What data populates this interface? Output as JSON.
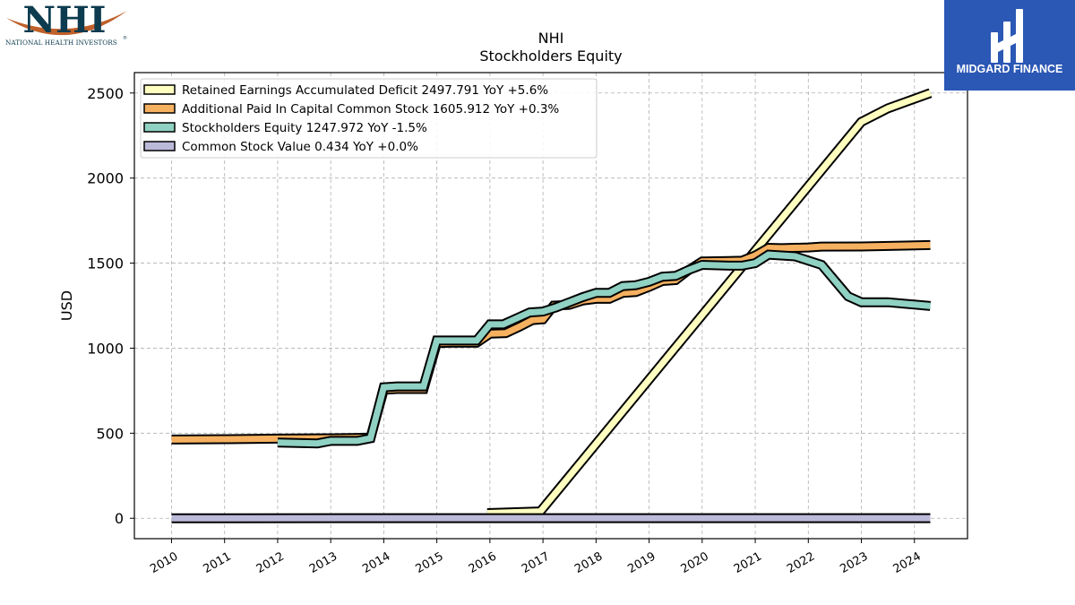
{
  "logo_left": {
    "text": "NHI",
    "subtext": "NATIONAL HEALTH INVESTORS",
    "mark": "®"
  },
  "logo_right": {
    "text": "MIDGARD FINANCE",
    "bg_color": "#2b57b5"
  },
  "chart_data": {
    "type": "line",
    "title": "NHI",
    "subtitle": "Stockholders  Equity",
    "ylabel": "USD",
    "xlabel": "",
    "xlim": [
      2009.3,
      2025.0
    ],
    "ylim": [
      -120,
      2620
    ],
    "x_ticks": [
      2010,
      2011,
      2012,
      2013,
      2014,
      2015,
      2016,
      2017,
      2018,
      2019,
      2020,
      2021,
      2022,
      2023,
      2024
    ],
    "y_ticks": [
      0,
      500,
      1000,
      1500,
      2000,
      2500
    ],
    "grid": true,
    "legend_position": "top-left",
    "series": [
      {
        "name": "Retained Earnings Accumulated Deficit",
        "legend": "Retained Earnings Accumulated Deficit  2497.791 YoY +5.6%",
        "color": "#ffffc0",
        "points": [
          [
            2015.95,
            30
          ],
          [
            2016.95,
            40
          ],
          [
            2023.0,
            2330
          ],
          [
            2023.5,
            2410
          ],
          [
            2024.3,
            2500
          ]
        ]
      },
      {
        "name": "Additional Paid In Capital Common Stock",
        "legend": "Additional Paid In Capital Common Stock  1605.912 YoY +0.3%",
        "color": "#f5b060",
        "points": [
          [
            2010.0,
            463
          ],
          [
            2011.0,
            465
          ],
          [
            2012.0,
            468
          ],
          [
            2013.0,
            470
          ],
          [
            2013.5,
            472
          ],
          [
            2013.75,
            475
          ],
          [
            2014.0,
            755
          ],
          [
            2014.25,
            760
          ],
          [
            2014.75,
            760
          ],
          [
            2015.0,
            1030
          ],
          [
            2015.25,
            1032
          ],
          [
            2015.75,
            1032
          ],
          [
            2016.0,
            1085
          ],
          [
            2016.3,
            1088
          ],
          [
            2016.55,
            1125
          ],
          [
            2016.8,
            1165
          ],
          [
            2017.0,
            1170
          ],
          [
            2017.2,
            1250
          ],
          [
            2017.5,
            1255
          ],
          [
            2017.75,
            1280
          ],
          [
            2018.0,
            1290
          ],
          [
            2018.25,
            1290
          ],
          [
            2018.5,
            1325
          ],
          [
            2018.75,
            1330
          ],
          [
            2019.0,
            1360
          ],
          [
            2019.25,
            1395
          ],
          [
            2019.5,
            1400
          ],
          [
            2019.75,
            1460
          ],
          [
            2020.0,
            1510
          ],
          [
            2020.5,
            1512
          ],
          [
            2020.75,
            1514
          ],
          [
            2021.0,
            1545
          ],
          [
            2021.25,
            1590
          ],
          [
            2021.5,
            1588
          ],
          [
            2022.0,
            1592
          ],
          [
            2022.25,
            1597
          ],
          [
            2023.0,
            1598
          ],
          [
            2024.3,
            1606
          ]
        ]
      },
      {
        "name": "Stockholders Equity",
        "legend": "Stockholders Equity  1247.972 YoY -1.5%",
        "color": "#8fd1c2",
        "points": [
          [
            2012.0,
            445
          ],
          [
            2012.75,
            440
          ],
          [
            2013.0,
            455
          ],
          [
            2013.5,
            455
          ],
          [
            2013.75,
            470
          ],
          [
            2014.0,
            770
          ],
          [
            2014.25,
            775
          ],
          [
            2014.75,
            775
          ],
          [
            2015.0,
            1045
          ],
          [
            2015.25,
            1045
          ],
          [
            2015.75,
            1045
          ],
          [
            2016.0,
            1140
          ],
          [
            2016.25,
            1140
          ],
          [
            2016.5,
            1175
          ],
          [
            2016.75,
            1210
          ],
          [
            2017.0,
            1215
          ],
          [
            2017.25,
            1240
          ],
          [
            2017.5,
            1270
          ],
          [
            2017.75,
            1300
          ],
          [
            2018.0,
            1325
          ],
          [
            2018.25,
            1325
          ],
          [
            2018.5,
            1365
          ],
          [
            2018.75,
            1370
          ],
          [
            2019.0,
            1390
          ],
          [
            2019.25,
            1420
          ],
          [
            2019.5,
            1425
          ],
          [
            2019.75,
            1460
          ],
          [
            2020.0,
            1490
          ],
          [
            2020.5,
            1485
          ],
          [
            2020.75,
            1485
          ],
          [
            2021.0,
            1500
          ],
          [
            2021.25,
            1550
          ],
          [
            2021.75,
            1540
          ],
          [
            2022.25,
            1490
          ],
          [
            2022.75,
            1305
          ],
          [
            2023.0,
            1270
          ],
          [
            2023.5,
            1270
          ],
          [
            2024.3,
            1248
          ]
        ]
      },
      {
        "name": "Common Stock Value",
        "legend": "Common Stock Value  0.434 YoY +0.0%",
        "color": "#bcbad9",
        "points": [
          [
            2010.0,
            0.3
          ],
          [
            2024.3,
            0.43
          ]
        ]
      }
    ]
  }
}
